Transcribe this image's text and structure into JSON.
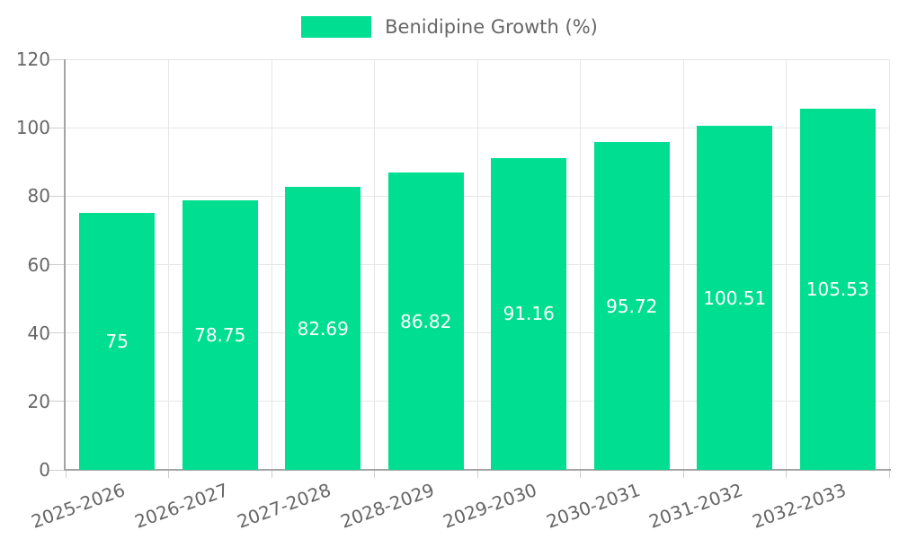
{
  "chart_data": {
    "type": "bar",
    "title": "Benidipine Growth (%)",
    "legend": {
      "label": "Benidipine Growth (%)",
      "position": "top"
    },
    "categories": [
      "2025-2026",
      "2026-2027",
      "2027-2028",
      "2028-2029",
      "2029-2030",
      "2030-2031",
      "2031-2032",
      "2032-2033"
    ],
    "values": [
      75,
      78.75,
      82.69,
      86.82,
      91.16,
      95.72,
      100.51,
      105.53
    ],
    "value_labels": [
      "75",
      "78.75",
      "82.69",
      "86.82",
      "91.16",
      "95.72",
      "100.51",
      "105.53"
    ],
    "xlabel": "",
    "ylabel": "",
    "ylim": [
      0,
      120
    ],
    "yticks": [
      0,
      20,
      40,
      60,
      80,
      100,
      120
    ],
    "x_label_rotation_deg": -20,
    "grid": true,
    "legend_position": "top",
    "colors": {
      "bar": "#00DE92",
      "axis_text": "#666666",
      "gridline": "#E6E6E6",
      "axis_line": "#A5A5A5",
      "tick": "#CFCFCF",
      "value_label_text": "#FFFFFF",
      "background": "#FFFFFF"
    }
  }
}
